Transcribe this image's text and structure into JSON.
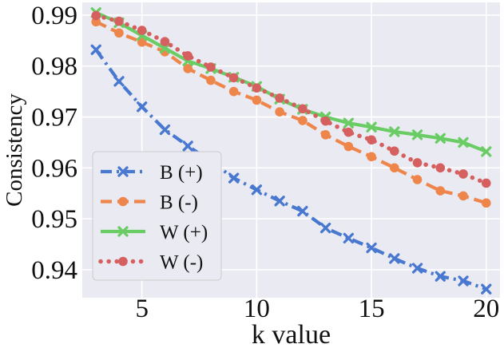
{
  "chart_data": {
    "type": "line",
    "xlabel": "k value",
    "ylabel": "Consistency",
    "xlim": [
      2.4,
      20.6
    ],
    "ylim": [
      0.9345,
      0.9925
    ],
    "xticks": [
      5,
      10,
      15,
      20
    ],
    "yticks": [
      0.94,
      0.95,
      0.96,
      0.97,
      0.98,
      0.99
    ],
    "grid": true,
    "legend_position": "lower-left",
    "colors": {
      "plot_bg": "#EAEAF2",
      "grid": "#ffffff",
      "legend_bg": "#EAEAF2",
      "legend_border": "#cccccc"
    },
    "x": [
      3,
      4,
      5,
      6,
      7,
      8,
      9,
      10,
      11,
      12,
      13,
      14,
      15,
      16,
      17,
      18,
      19,
      20
    ],
    "series": [
      {
        "name": "B (+)",
        "label": "B (+)",
        "color": "#4878D0",
        "marker": "x",
        "dash": "dashdot",
        "values": [
          0.9832,
          0.977,
          0.972,
          0.9675,
          0.9643,
          0.9613,
          0.958,
          0.9557,
          0.9535,
          0.9515,
          0.9482,
          0.9462,
          0.9443,
          0.9422,
          0.9403,
          0.9387,
          0.9378,
          0.9362
        ]
      },
      {
        "name": "B (-)",
        "label": "B (-)",
        "color": "#EE854A",
        "marker": "o",
        "dash": "dashed",
        "values": [
          0.9887,
          0.9865,
          0.9847,
          0.9828,
          0.9795,
          0.9772,
          0.975,
          0.9733,
          0.971,
          0.9693,
          0.9665,
          0.9642,
          0.9622,
          0.96,
          0.9577,
          0.9555,
          0.9545,
          0.9531
        ]
      },
      {
        "name": "W (+)",
        "label": "W (+)",
        "color": "#6ACC64",
        "marker": "x",
        "dash": "solid",
        "values": [
          0.9905,
          0.9885,
          0.986,
          0.9835,
          0.981,
          0.9795,
          0.9778,
          0.976,
          0.9735,
          0.9715,
          0.97,
          0.9688,
          0.968,
          0.9671,
          0.9665,
          0.9658,
          0.965,
          0.9632
        ]
      },
      {
        "name": "W (-)",
        "label": "W (-)",
        "color": "#D65F5F",
        "marker": "o",
        "dash": "dotted",
        "values": [
          0.9899,
          0.9888,
          0.987,
          0.9848,
          0.982,
          0.9798,
          0.9777,
          0.9757,
          0.9737,
          0.9716,
          0.9692,
          0.967,
          0.9655,
          0.9633,
          0.961,
          0.96,
          0.9588,
          0.957
        ]
      }
    ]
  }
}
